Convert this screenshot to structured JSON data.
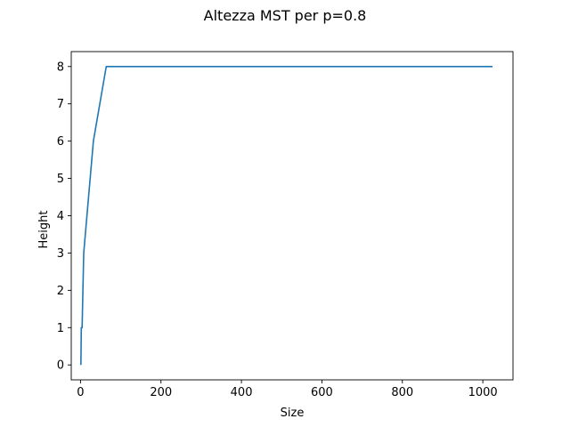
{
  "chart_data": {
    "type": "line",
    "title": "Altezza MST per p=0.8",
    "xlabel": "Size",
    "ylabel": "Height",
    "xlim": [
      -23,
      1075
    ],
    "ylim": [
      -0.4,
      8.4
    ],
    "xticks": [
      0,
      200,
      400,
      600,
      800,
      1000
    ],
    "yticks": [
      0,
      1,
      2,
      3,
      4,
      5,
      6,
      7,
      8
    ],
    "grid": false,
    "series": [
      {
        "color": "#1f77b4",
        "x": [
          1,
          2,
          4,
          8,
          16,
          32,
          64,
          128,
          256,
          512,
          1024
        ],
        "y": [
          0,
          1,
          1,
          3,
          4,
          6,
          8,
          8,
          8,
          8,
          8
        ]
      }
    ]
  }
}
